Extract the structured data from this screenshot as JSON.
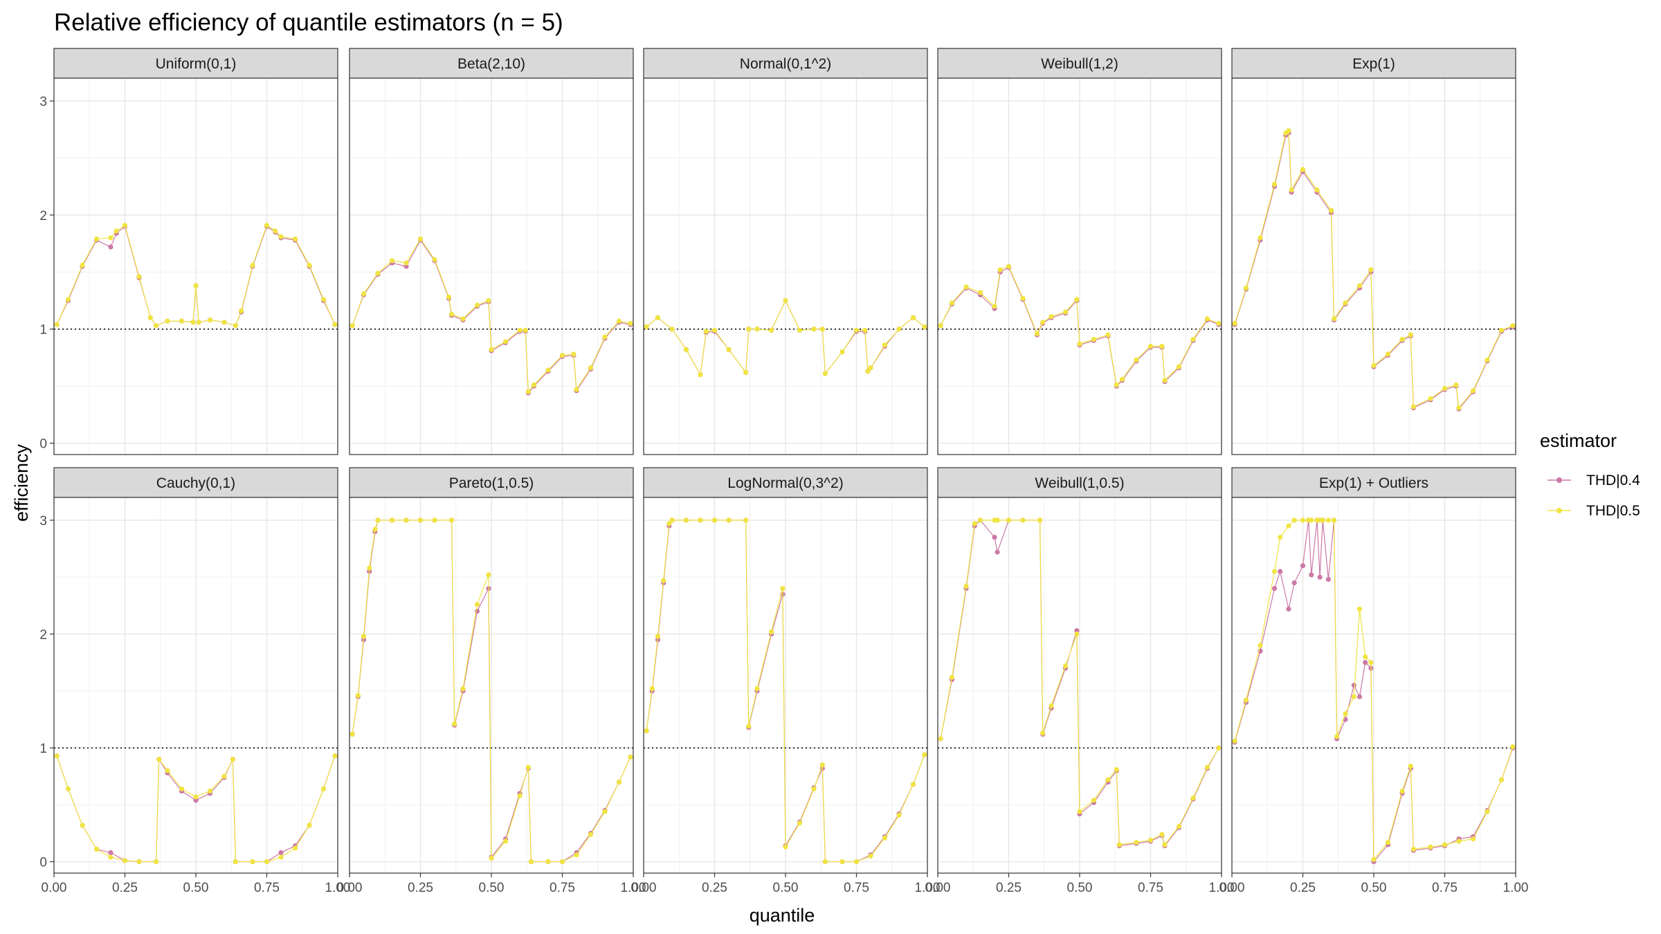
{
  "chart_data": {
    "type": "line",
    "title": "Relative efficiency of quantile estimators (n = 5)",
    "xlabel": "quantile",
    "ylabel": "efficiency",
    "xlim": [
      0,
      1
    ],
    "ylim": [
      -0.1,
      3.2
    ],
    "x_ticks": [
      0,
      0.25,
      0.5,
      0.75,
      1
    ],
    "x_tick_labels": [
      "0.00",
      "0.25",
      "0.50",
      "0.75",
      "1.00"
    ],
    "y_ticks": [
      0,
      1,
      2,
      3
    ],
    "y_tick_labels": [
      "0",
      "1",
      "2",
      "3"
    ],
    "reference_line": 1,
    "grid": true,
    "legend": {
      "title": "estimator",
      "position": "right",
      "entries": [
        {
          "name": "THD|0.4",
          "color": "#cc79a7"
        },
        {
          "name": "THD|0.5",
          "color": "#f0e442"
        }
      ]
    },
    "panels": [
      {
        "name": "Uniform(0,1)",
        "x": [
          0.01,
          0.05,
          0.1,
          0.15,
          0.2,
          0.22,
          0.25,
          0.3,
          0.34,
          0.36,
          0.4,
          0.45,
          0.49,
          0.5,
          0.51,
          0.55,
          0.6,
          0.64,
          0.66,
          0.7,
          0.75,
          0.78,
          0.8,
          0.85,
          0.9,
          0.95,
          0.99
        ],
        "thd04": [
          1.04,
          1.25,
          1.55,
          1.78,
          1.72,
          1.84,
          1.9,
          1.45,
          1.1,
          1.03,
          1.07,
          1.07,
          1.06,
          1.38,
          1.06,
          1.08,
          1.06,
          1.03,
          1.15,
          1.55,
          1.9,
          1.85,
          1.8,
          1.78,
          1.55,
          1.25,
          1.04
        ],
        "thd05": [
          1.04,
          1.26,
          1.56,
          1.79,
          1.8,
          1.86,
          1.91,
          1.46,
          1.1,
          1.03,
          1.07,
          1.07,
          1.06,
          1.38,
          1.06,
          1.08,
          1.06,
          1.03,
          1.16,
          1.56,
          1.91,
          1.86,
          1.81,
          1.79,
          1.56,
          1.26,
          1.04
        ]
      },
      {
        "name": "Beta(2,10)",
        "x": [
          0.01,
          0.05,
          0.1,
          0.15,
          0.2,
          0.25,
          0.3,
          0.35,
          0.36,
          0.4,
          0.45,
          0.49,
          0.5,
          0.55,
          0.6,
          0.62,
          0.63,
          0.65,
          0.7,
          0.75,
          0.79,
          0.8,
          0.85,
          0.9,
          0.95,
          0.99
        ],
        "thd04": [
          1.03,
          1.3,
          1.48,
          1.58,
          1.55,
          1.78,
          1.6,
          1.27,
          1.12,
          1.08,
          1.2,
          1.24,
          0.81,
          0.88,
          0.98,
          0.98,
          0.44,
          0.5,
          0.63,
          0.76,
          0.77,
          0.46,
          0.65,
          0.92,
          1.06,
          1.04
        ],
        "thd05": [
          1.03,
          1.31,
          1.49,
          1.6,
          1.58,
          1.79,
          1.61,
          1.28,
          1.13,
          1.09,
          1.21,
          1.25,
          0.82,
          0.89,
          0.99,
          0.99,
          0.45,
          0.51,
          0.64,
          0.77,
          0.78,
          0.47,
          0.66,
          0.93,
          1.07,
          1.05
        ]
      },
      {
        "name": "Normal(0,1^2)",
        "x": [
          0.01,
          0.05,
          0.1,
          0.15,
          0.2,
          0.22,
          0.25,
          0.3,
          0.36,
          0.37,
          0.4,
          0.45,
          0.5,
          0.55,
          0.6,
          0.63,
          0.64,
          0.7,
          0.75,
          0.78,
          0.79,
          0.8,
          0.85,
          0.9,
          0.95,
          0.99
        ],
        "thd04": [
          1.02,
          1.1,
          1.0,
          0.82,
          0.6,
          0.97,
          0.98,
          0.82,
          0.62,
          1.0,
          1.0,
          0.99,
          1.25,
          0.99,
          1.0,
          1.0,
          0.61,
          0.8,
          0.98,
          0.98,
          0.63,
          0.66,
          0.85,
          1.0,
          1.1,
          1.02
        ],
        "thd05": [
          1.02,
          1.1,
          1.0,
          0.82,
          0.6,
          0.98,
          0.99,
          0.82,
          0.62,
          1.0,
          1.0,
          0.99,
          1.25,
          0.99,
          1.0,
          1.0,
          0.61,
          0.8,
          0.99,
          0.99,
          0.63,
          0.66,
          0.86,
          1.0,
          1.1,
          1.02
        ]
      },
      {
        "name": "Weibull(1,2)",
        "x": [
          0.01,
          0.05,
          0.1,
          0.15,
          0.2,
          0.22,
          0.25,
          0.3,
          0.35,
          0.37,
          0.4,
          0.45,
          0.49,
          0.5,
          0.55,
          0.6,
          0.63,
          0.65,
          0.7,
          0.75,
          0.79,
          0.8,
          0.85,
          0.9,
          0.95,
          0.99
        ],
        "thd04": [
          1.03,
          1.22,
          1.36,
          1.3,
          1.18,
          1.5,
          1.54,
          1.26,
          0.95,
          1.05,
          1.1,
          1.14,
          1.25,
          0.86,
          0.9,
          0.94,
          0.5,
          0.55,
          0.72,
          0.84,
          0.84,
          0.54,
          0.66,
          0.9,
          1.08,
          1.04
        ],
        "thd05": [
          1.03,
          1.23,
          1.37,
          1.32,
          1.2,
          1.52,
          1.55,
          1.27,
          0.96,
          1.06,
          1.11,
          1.15,
          1.26,
          0.87,
          0.91,
          0.95,
          0.51,
          0.56,
          0.73,
          0.85,
          0.85,
          0.55,
          0.67,
          0.91,
          1.09,
          1.05
        ]
      },
      {
        "name": "Exp(1)",
        "x": [
          0.01,
          0.05,
          0.1,
          0.15,
          0.19,
          0.2,
          0.21,
          0.25,
          0.3,
          0.35,
          0.36,
          0.4,
          0.45,
          0.49,
          0.5,
          0.55,
          0.6,
          0.63,
          0.64,
          0.7,
          0.75,
          0.79,
          0.8,
          0.85,
          0.9,
          0.95,
          0.99
        ],
        "thd04": [
          1.04,
          1.35,
          1.78,
          2.25,
          2.7,
          2.72,
          2.2,
          2.38,
          2.2,
          2.02,
          1.08,
          1.22,
          1.36,
          1.5,
          0.67,
          0.77,
          0.9,
          0.94,
          0.31,
          0.38,
          0.47,
          0.5,
          0.3,
          0.45,
          0.72,
          0.98,
          1.02
        ],
        "thd05": [
          1.05,
          1.36,
          1.8,
          2.27,
          2.72,
          2.74,
          2.22,
          2.4,
          2.22,
          2.04,
          1.09,
          1.23,
          1.38,
          1.52,
          0.68,
          0.78,
          0.91,
          0.95,
          0.32,
          0.39,
          0.48,
          0.51,
          0.31,
          0.46,
          0.73,
          0.99,
          1.03
        ]
      },
      {
        "name": "Cauchy(0,1)",
        "x": [
          0.01,
          0.05,
          0.1,
          0.15,
          0.2,
          0.25,
          0.3,
          0.36,
          0.37,
          0.4,
          0.45,
          0.5,
          0.55,
          0.6,
          0.63,
          0.64,
          0.7,
          0.75,
          0.8,
          0.85,
          0.9,
          0.95,
          0.99
        ],
        "thd04": [
          0.93,
          0.64,
          0.32,
          0.11,
          0.08,
          0.01,
          0.0,
          0.0,
          0.9,
          0.78,
          0.62,
          0.54,
          0.6,
          0.74,
          0.9,
          0.0,
          0.0,
          0.0,
          0.08,
          0.14,
          0.32,
          0.64,
          0.93
        ],
        "thd05": [
          0.93,
          0.64,
          0.32,
          0.11,
          0.04,
          0.01,
          0.0,
          0.0,
          0.9,
          0.8,
          0.64,
          0.57,
          0.62,
          0.75,
          0.9,
          0.0,
          0.0,
          0.0,
          0.04,
          0.12,
          0.32,
          0.64,
          0.93
        ],
        "thd05_capped": []
      },
      {
        "name": "Pareto(1,0.5)",
        "x": [
          0.01,
          0.03,
          0.05,
          0.07,
          0.09,
          0.1,
          0.15,
          0.2,
          0.25,
          0.3,
          0.36,
          0.37,
          0.4,
          0.45,
          0.49,
          0.5,
          0.55,
          0.6,
          0.63,
          0.64,
          0.7,
          0.75,
          0.8,
          0.85,
          0.9,
          0.95,
          0.99
        ],
        "thd04": [
          1.12,
          1.45,
          1.95,
          2.55,
          2.9,
          3.0,
          3.0,
          3.0,
          3.0,
          3.0,
          3.0,
          1.2,
          1.5,
          2.2,
          2.4,
          0.04,
          0.2,
          0.6,
          0.82,
          0.0,
          0.0,
          0.0,
          0.08,
          0.25,
          0.45,
          0.7,
          0.92
        ],
        "thd05": [
          1.12,
          1.46,
          1.98,
          2.58,
          2.92,
          3.0,
          3.0,
          3.0,
          3.0,
          3.0,
          3.0,
          1.21,
          1.52,
          2.26,
          2.52,
          0.03,
          0.18,
          0.58,
          0.83,
          0.0,
          0.0,
          0.0,
          0.06,
          0.24,
          0.44,
          0.7,
          0.92
        ]
      },
      {
        "name": "LogNormal(0,3^2)",
        "x": [
          0.01,
          0.03,
          0.05,
          0.07,
          0.09,
          0.1,
          0.15,
          0.2,
          0.25,
          0.3,
          0.36,
          0.37,
          0.4,
          0.45,
          0.49,
          0.5,
          0.55,
          0.6,
          0.63,
          0.64,
          0.7,
          0.75,
          0.8,
          0.85,
          0.9,
          0.95,
          0.99
        ],
        "thd04": [
          1.15,
          1.5,
          1.95,
          2.45,
          2.95,
          3.0,
          3.0,
          3.0,
          3.0,
          3.0,
          3.0,
          1.18,
          1.5,
          2.0,
          2.35,
          0.14,
          0.35,
          0.65,
          0.82,
          0.0,
          0.0,
          0.0,
          0.06,
          0.22,
          0.42,
          0.68,
          0.94
        ],
        "thd05": [
          1.15,
          1.52,
          1.98,
          2.47,
          2.97,
          3.0,
          3.0,
          3.0,
          3.0,
          3.0,
          3.0,
          1.19,
          1.52,
          2.02,
          2.4,
          0.13,
          0.34,
          0.64,
          0.85,
          0.0,
          0.0,
          0.0,
          0.05,
          0.21,
          0.41,
          0.68,
          0.94
        ]
      },
      {
        "name": "Weibull(1,0.5)",
        "x": [
          0.01,
          0.05,
          0.1,
          0.13,
          0.15,
          0.2,
          0.21,
          0.25,
          0.3,
          0.36,
          0.37,
          0.4,
          0.45,
          0.49,
          0.5,
          0.55,
          0.6,
          0.63,
          0.64,
          0.7,
          0.75,
          0.79,
          0.8,
          0.85,
          0.9,
          0.95,
          0.99
        ],
        "thd04": [
          1.08,
          1.6,
          2.4,
          2.95,
          3.0,
          2.85,
          2.72,
          3.0,
          3.0,
          3.0,
          1.12,
          1.35,
          1.7,
          2.03,
          0.42,
          0.52,
          0.7,
          0.8,
          0.14,
          0.16,
          0.18,
          0.23,
          0.14,
          0.3,
          0.55,
          0.82,
          1.0
        ],
        "thd05": [
          1.08,
          1.62,
          2.42,
          2.97,
          3.0,
          3.0,
          3.0,
          3.0,
          3.0,
          3.0,
          1.13,
          1.37,
          1.72,
          2.0,
          0.44,
          0.54,
          0.72,
          0.81,
          0.15,
          0.17,
          0.19,
          0.24,
          0.15,
          0.31,
          0.56,
          0.83,
          1.0
        ]
      },
      {
        "name": "Exp(1) + Outliers",
        "x": [
          0.01,
          0.05,
          0.1,
          0.15,
          0.17,
          0.2,
          0.22,
          0.25,
          0.27,
          0.28,
          0.3,
          0.31,
          0.32,
          0.34,
          0.36,
          0.37,
          0.4,
          0.43,
          0.45,
          0.47,
          0.49,
          0.5,
          0.55,
          0.6,
          0.63,
          0.64,
          0.7,
          0.75,
          0.8,
          0.85,
          0.9,
          0.95,
          0.99
        ],
        "thd04": [
          1.05,
          1.4,
          1.85,
          2.4,
          2.55,
          2.22,
          2.45,
          2.6,
          3.0,
          2.52,
          3.0,
          2.5,
          3.0,
          2.48,
          3.0,
          1.08,
          1.25,
          1.55,
          1.45,
          1.75,
          1.7,
          0.0,
          0.15,
          0.6,
          0.82,
          0.1,
          0.12,
          0.14,
          0.2,
          0.22,
          0.45,
          0.72,
          1.0
        ],
        "thd05": [
          1.06,
          1.42,
          1.9,
          2.55,
          2.85,
          2.95,
          3.0,
          3.0,
          3.0,
          3.0,
          3.0,
          3.0,
          3.0,
          3.0,
          3.0,
          1.1,
          1.3,
          1.45,
          2.22,
          1.8,
          1.75,
          0.02,
          0.17,
          0.62,
          0.84,
          0.11,
          0.13,
          0.15,
          0.18,
          0.2,
          0.44,
          0.72,
          1.01
        ]
      }
    ]
  }
}
